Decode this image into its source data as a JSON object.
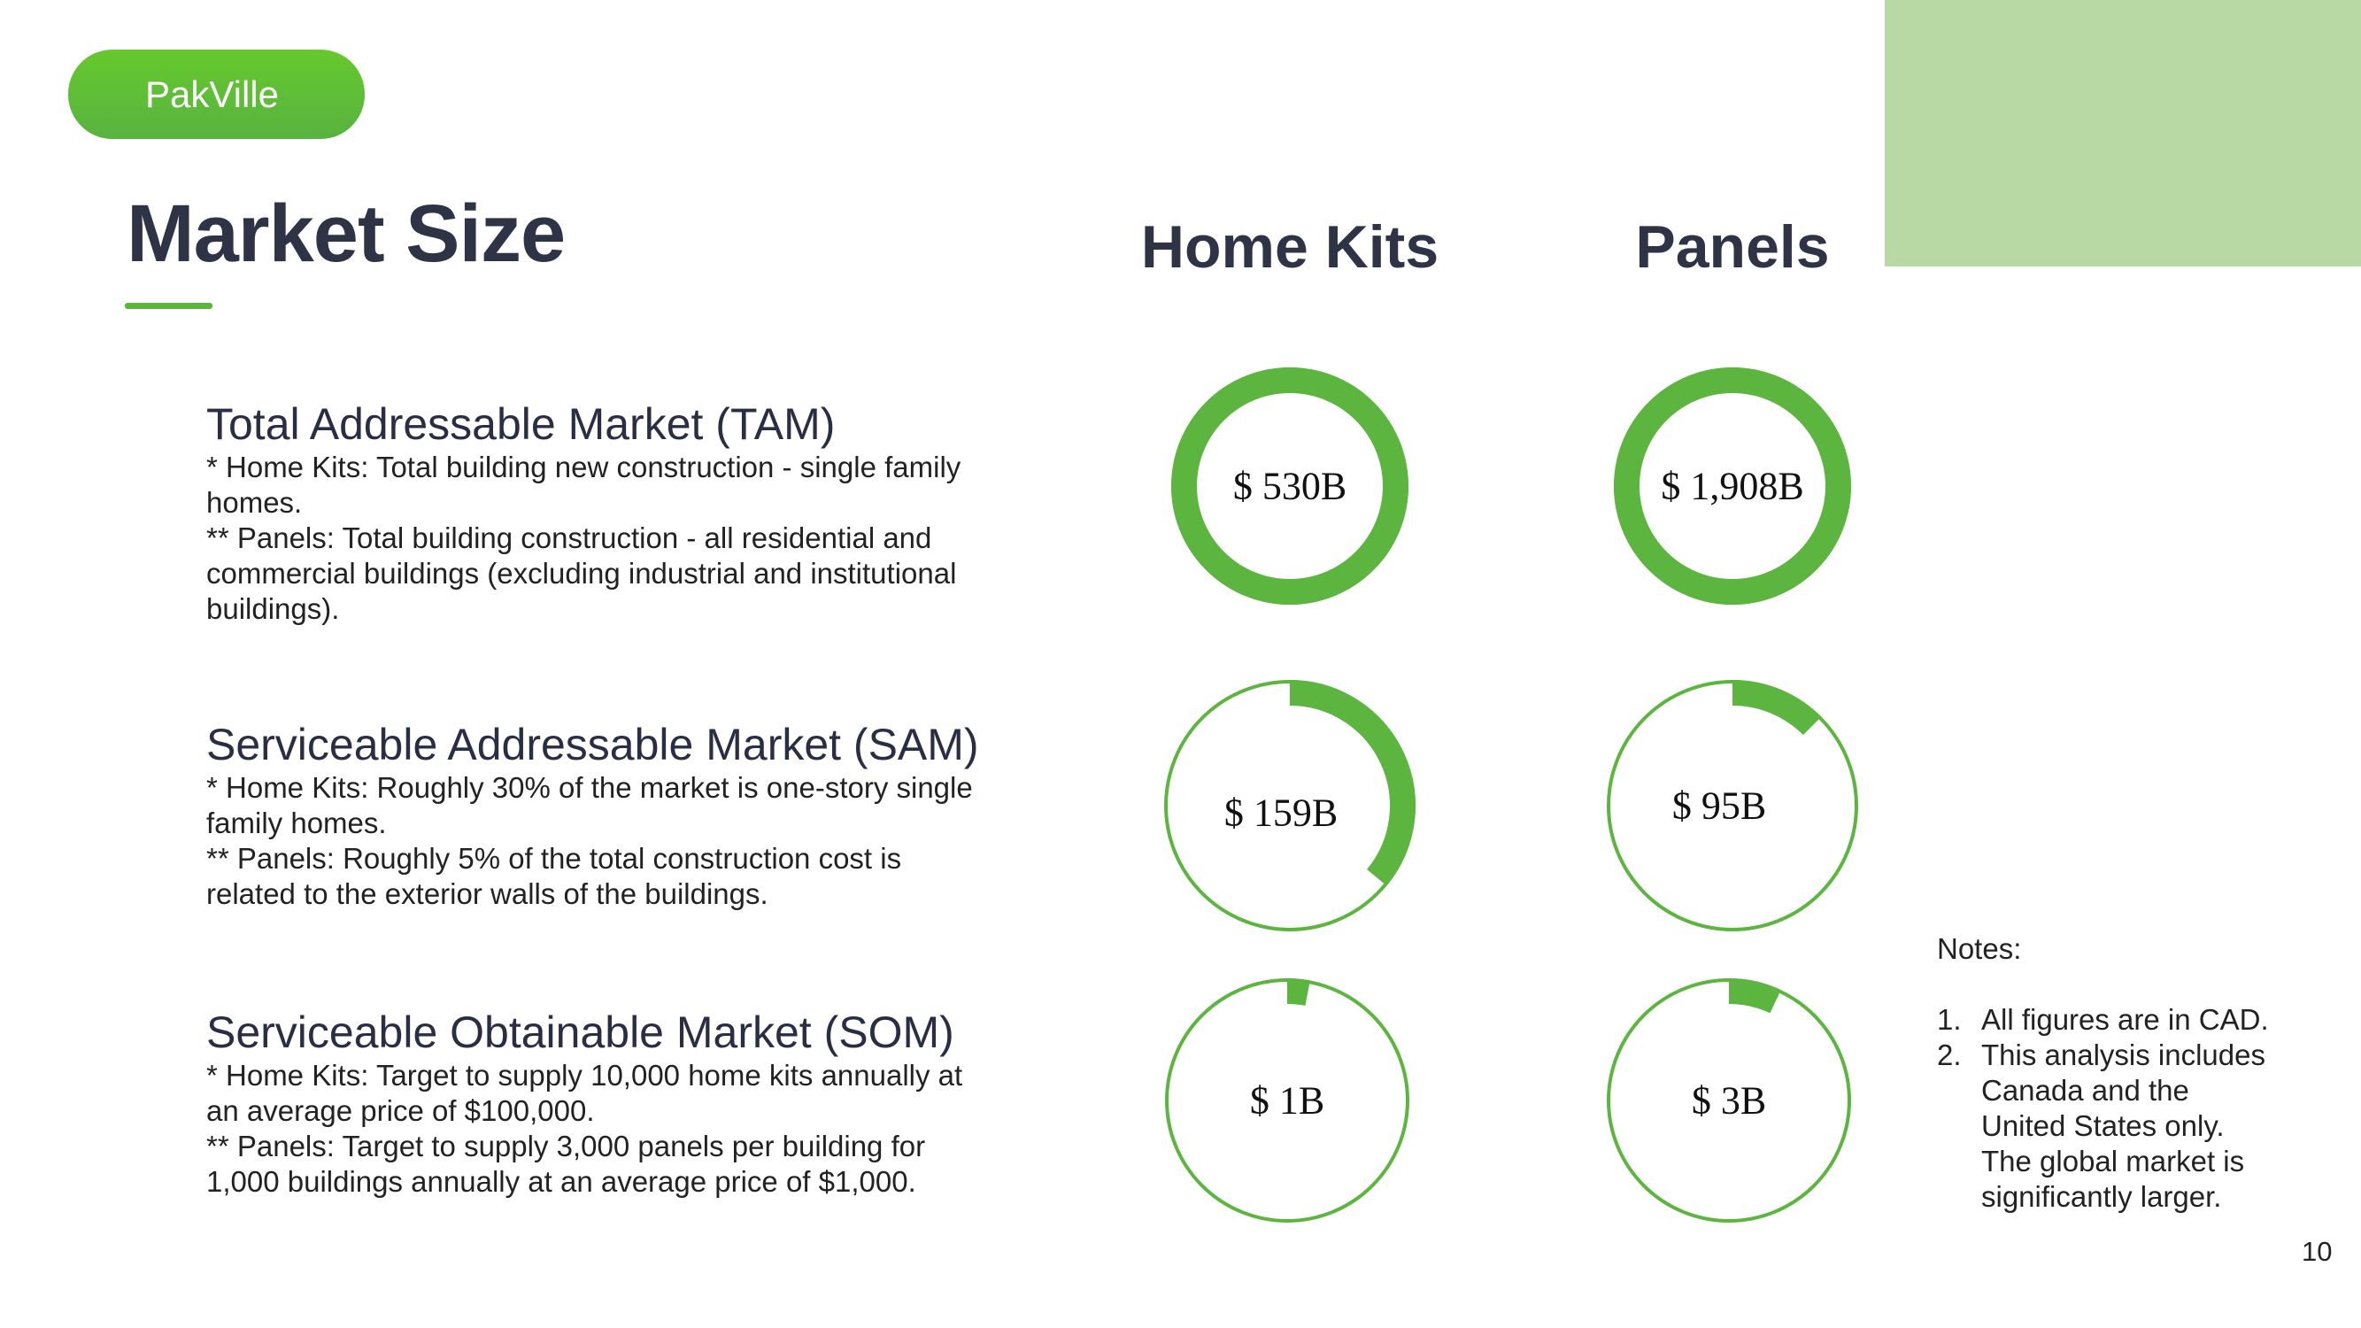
{
  "brand": {
    "name": "PakVille"
  },
  "page": {
    "title": "Market Size",
    "number": "10"
  },
  "colors": {
    "accent": "#5bb53e",
    "deco": "#b8d8a4",
    "text": "#2e3445"
  },
  "columns": [
    "Home Kits",
    "Panels"
  ],
  "sections": [
    {
      "heading": "Total Addressable Market (TAM)",
      "lines": [
        "* Home Kits: Total building new construction - single family",
        "homes.",
        "** Panels: Total building construction - all residential and",
        "commercial buildings (excluding industrial and institutional",
        "buildings)."
      ]
    },
    {
      "heading": "Serviceable Addressable Market (SAM)",
      "lines": [
        "* Home Kits: Roughly 30% of the market is one-story single",
        "family homes.",
        "** Panels: Roughly 5% of the total construction cost is",
        "related to the exterior walls of the buildings."
      ]
    },
    {
      "heading": "Serviceable Obtainable Market (SOM)",
      "lines": [
        "* Home Kits: Target to supply 10,000 home kits annually at",
        "an average price of $100,000.",
        "** Panels: Target to supply 3,000 panels per building for",
        "1,000 buildings annually at an average price of $1,000."
      ]
    }
  ],
  "chart_data": {
    "type": "donut-grid",
    "columns": [
      "Home Kits",
      "Panels"
    ],
    "rows": [
      "TAM",
      "SAM",
      "SOM"
    ],
    "cells": [
      [
        {
          "label": "$ 530B",
          "value_billions": 530,
          "fill": 1.0
        },
        {
          "label": "$ 1,908B",
          "value_billions": 1908,
          "fill": 1.0
        }
      ],
      [
        {
          "label": "$ 159B",
          "value_billions": 159,
          "fill": 0.36
        },
        {
          "label": "$ 95B",
          "value_billions": 95,
          "fill": 0.125
        }
      ],
      [
        {
          "label": "$ 1B",
          "value_billions": 1,
          "fill": 0.03
        },
        {
          "label": "$ 3B",
          "value_billions": 3,
          "fill": 0.07
        }
      ]
    ]
  },
  "notes": {
    "label": "Notes:",
    "items": [
      {
        "num": "1.",
        "lines": [
          "All figures are in CAD."
        ]
      },
      {
        "num": "2.",
        "lines": [
          "This analysis includes",
          "Canada and the",
          "United States only.",
          "The global market is",
          "significantly larger."
        ]
      }
    ]
  }
}
